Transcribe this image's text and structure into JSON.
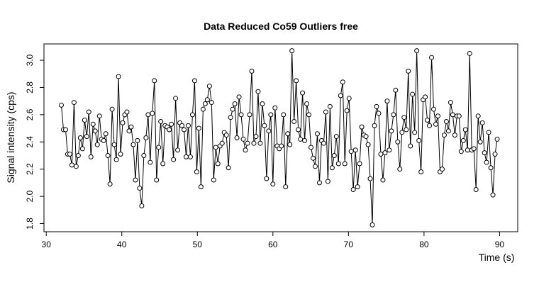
{
  "chart_data": {
    "type": "line-points",
    "title": "Data Reduced Co59 Outliers free",
    "xlabel": "Time (s)",
    "ylabel": "Signal intensity (cps)",
    "xlim": [
      29.7,
      92.4
    ],
    "ylim": [
      1.74,
      3.12
    ],
    "xticks": [
      30,
      40,
      50,
      60,
      70,
      80,
      90
    ],
    "yticks": [
      1.8,
      {
        "value": 2.0,
        "label": "2.0"
      },
      2.2,
      2.4,
      2.6,
      2.8,
      {
        "value": 3.0,
        "label": "3.0"
      }
    ],
    "color": "#000000",
    "x": [
      32.0,
      32.28,
      32.56,
      32.84,
      33.12,
      33.4,
      33.68,
      33.96,
      34.24,
      34.52,
      34.8,
      35.08,
      35.36,
      35.64,
      35.92,
      36.2,
      36.48,
      36.76,
      37.04,
      37.32,
      37.6,
      37.88,
      38.16,
      38.44,
      38.72,
      39.0,
      39.28,
      39.56,
      39.84,
      40.12,
      40.4,
      40.68,
      40.96,
      41.24,
      41.52,
      41.8,
      42.08,
      42.36,
      42.64,
      42.92,
      43.2,
      43.48,
      43.76,
      44.04,
      44.32,
      44.6,
      44.88,
      45.16,
      45.44,
      45.72,
      46.0,
      46.28,
      46.56,
      46.84,
      47.12,
      47.4,
      47.68,
      47.96,
      48.24,
      48.52,
      48.8,
      49.08,
      49.36,
      49.64,
      49.92,
      50.2,
      50.48,
      50.76,
      51.04,
      51.32,
      51.6,
      51.88,
      52.16,
      52.44,
      52.72,
      53.0,
      53.28,
      53.56,
      53.84,
      54.12,
      54.4,
      54.68,
      54.96,
      55.24,
      55.52,
      55.8,
      56.08,
      56.36,
      56.64,
      56.92,
      57.2,
      57.48,
      57.76,
      58.04,
      58.32,
      58.6,
      58.88,
      59.16,
      59.44,
      59.72,
      60.0,
      60.28,
      60.56,
      60.84,
      61.12,
      61.4,
      61.68,
      61.96,
      62.24,
      62.52,
      62.8,
      63.08,
      63.36,
      63.64,
      63.92,
      64.2,
      64.48,
      64.76,
      65.04,
      65.32,
      65.6,
      65.88,
      66.16,
      66.44,
      66.72,
      67.0,
      67.28,
      67.56,
      67.84,
      68.12,
      68.4,
      68.68,
      68.96,
      69.24,
      69.52,
      69.8,
      70.08,
      70.36,
      70.64,
      70.92,
      71.2,
      71.48,
      71.76,
      72.04,
      72.32,
      72.6,
      72.88,
      73.16,
      73.44,
      73.72,
      74.0,
      74.28,
      74.56,
      74.84,
      75.12,
      75.4,
      75.68,
      75.96,
      76.24,
      76.52,
      76.8,
      77.08,
      77.36,
      77.64,
      77.92,
      78.2,
      78.48,
      78.76,
      79.04,
      79.32,
      79.6,
      79.88,
      80.16,
      80.44,
      80.72,
      81.0,
      81.28,
      81.56,
      81.84,
      82.12,
      82.4,
      82.68,
      82.96,
      83.24,
      83.52,
      83.8,
      84.08,
      84.36,
      84.64,
      84.92,
      85.2,
      85.48,
      85.76,
      86.04,
      86.32,
      86.6,
      86.88,
      87.16,
      87.44,
      87.72,
      88.0,
      88.28,
      88.56,
      88.84,
      89.12,
      89.4,
      89.68
    ],
    "values": [
      2.67,
      2.49,
      2.49,
      2.31,
      2.31,
      2.23,
      2.69,
      2.22,
      2.3,
      2.43,
      2.35,
      2.56,
      2.44,
      2.62,
      2.29,
      2.53,
      2.48,
      2.38,
      2.59,
      2.42,
      2.41,
      2.46,
      2.3,
      2.09,
      2.64,
      2.38,
      2.27,
      2.88,
      2.31,
      2.54,
      2.6,
      2.62,
      2.48,
      2.51,
      2.38,
      2.12,
      2.41,
      2.06,
      1.93,
      2.3,
      2.43,
      2.6,
      2.25,
      2.61,
      2.85,
      2.12,
      2.36,
      2.55,
      2.24,
      2.52,
      2.51,
      2.49,
      2.53,
      2.27,
      2.72,
      2.34,
      2.54,
      2.52,
      2.49,
      2.29,
      2.52,
      2.29,
      2.6,
      2.85,
      2.18,
      2.5,
      2.07,
      2.64,
      2.68,
      2.71,
      2.81,
      2.69,
      2.12,
      2.36,
      2.24,
      2.37,
      2.39,
      2.47,
      2.45,
      2.21,
      2.58,
      2.64,
      2.68,
      2.43,
      2.73,
      2.6,
      2.42,
      2.34,
      2.39,
      2.6,
      2.92,
      2.39,
      2.44,
      2.77,
      2.39,
      2.68,
      2.52,
      2.13,
      2.48,
      2.6,
      2.09,
      2.65,
      2.37,
      2.35,
      2.37,
      2.6,
      2.07,
      2.46,
      2.38,
      3.07,
      2.55,
      2.85,
      2.49,
      2.42,
      2.76,
      2.41,
      2.68,
      2.6,
      2.36,
      2.28,
      2.22,
      2.46,
      2.1,
      2.41,
      2.39,
      2.62,
      2.11,
      2.66,
      2.21,
      2.3,
      2.44,
      2.24,
      2.74,
      2.84,
      2.24,
      2.63,
      2.72,
      2.33,
      2.05,
      2.34,
      2.07,
      2.24,
      2.51,
      2.45,
      2.44,
      2.38,
      2.13,
      1.79,
      2.52,
      2.66,
      2.61,
      2.31,
      2.12,
      2.32,
      2.7,
      2.34,
      2.48,
      2.6,
      2.78,
      2.4,
      2.2,
      2.47,
      2.58,
      2.49,
      2.92,
      2.37,
      2.75,
      2.47,
      3.07,
      2.41,
      2.18,
      2.71,
      2.73,
      2.56,
      2.52,
      3.02,
      2.64,
      2.53,
      2.59,
      2.18,
      2.2,
      2.45,
      2.55,
      2.48,
      2.69,
      2.6,
      2.45,
      2.59,
      2.59,
      2.33,
      2.41,
      2.49,
      2.34,
      3.05,
      2.34,
      2.35,
      2.05,
      2.59,
      2.4,
      2.54,
      2.32,
      2.25,
      2.47,
      2.21,
      2.01,
      2.31,
      2.42
    ]
  }
}
